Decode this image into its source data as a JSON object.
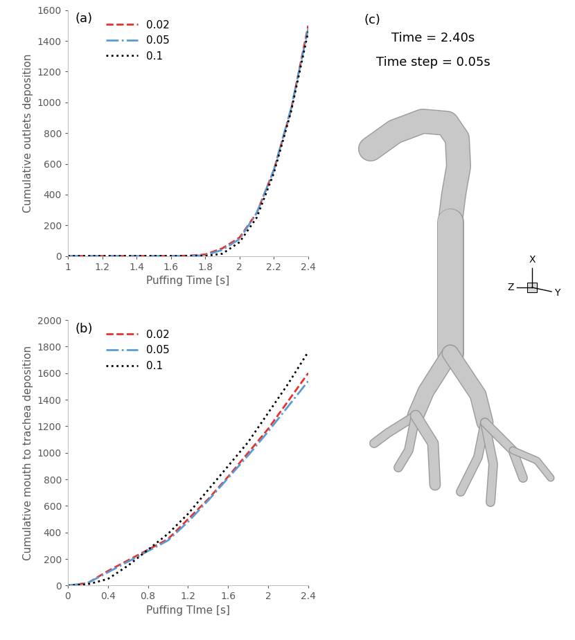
{
  "chart_data": [
    {
      "type": "line",
      "annotations": [
        "(a)"
      ],
      "x_label": "Puffing Time [s]",
      "y_label": "Cumulative outlets deposition",
      "x": [
        1,
        1.2,
        1.4,
        1.6,
        1.7,
        1.8,
        1.9,
        2.0,
        2.1,
        2.2,
        2.3,
        2.4
      ],
      "series": [
        {
          "name": "0.02",
          "color": "#e8312a",
          "line_style": "dashed",
          "values": [
            0,
            0,
            0,
            0,
            2,
            10,
            50,
            120,
            280,
            560,
            950,
            1500
          ]
        },
        {
          "name": "0.05",
          "color": "#5b9bd5",
          "line_style": "dashdot",
          "values": [
            0,
            0,
            0,
            0,
            0,
            5,
            40,
            110,
            280,
            560,
            960,
            1480
          ]
        },
        {
          "name": "0.1",
          "color": "#000000",
          "line_style": "dotted",
          "values": [
            0,
            0,
            0,
            0,
            0,
            0,
            15,
            90,
            250,
            540,
            940,
            1460
          ]
        }
      ],
      "xlim": [
        1,
        2.4
      ],
      "xticks": [
        1,
        1.2,
        1.4,
        1.6,
        1.8,
        2,
        2.2,
        2.4
      ],
      "ylim": [
        0,
        1600
      ],
      "yticks": [
        0,
        200,
        400,
        600,
        800,
        1000,
        1200,
        1400,
        1600
      ],
      "legend": "upper left",
      "grid": false
    },
    {
      "type": "line",
      "annotations": [
        "(b)"
      ],
      "x_label": "Puffing TIme [s]",
      "y_label": "Cumulative mouth to trachea deposition",
      "x": [
        0,
        0.2,
        0.4,
        0.6,
        0.8,
        1.0,
        1.2,
        1.4,
        1.6,
        1.8,
        2.0,
        2.2,
        2.4
      ],
      "series": [
        {
          "name": "0.02",
          "color": "#e8312a",
          "line_style": "dashed",
          "values": [
            0,
            20,
            110,
            190,
            270,
            350,
            500,
            650,
            820,
            1000,
            1180,
            1390,
            1600
          ]
        },
        {
          "name": "0.05",
          "color": "#5b9bd5",
          "line_style": "dashdot",
          "values": [
            0,
            20,
            100,
            180,
            260,
            340,
            480,
            640,
            810,
            980,
            1160,
            1350,
            1540
          ]
        },
        {
          "name": "0.1",
          "color": "#000000",
          "line_style": "dotted",
          "values": [
            0,
            10,
            50,
            150,
            270,
            390,
            540,
            720,
            900,
            1080,
            1300,
            1520,
            1760
          ]
        }
      ],
      "xlim": [
        0,
        2.4
      ],
      "xticks": [
        0,
        0.4,
        0.8,
        1.2,
        1.6,
        2,
        2.4
      ],
      "ylim": [
        0,
        2000
      ],
      "yticks": [
        0,
        200,
        400,
        600,
        800,
        1000,
        1200,
        1400,
        1600,
        1800,
        2000
      ],
      "legend": "upper left",
      "grid": false
    }
  ],
  "panel_c": {
    "label": "(c)",
    "time": "Time = 2.40s",
    "time_step": "Time step = 0.05s",
    "axes": [
      "X",
      "Z",
      "Y"
    ]
  }
}
